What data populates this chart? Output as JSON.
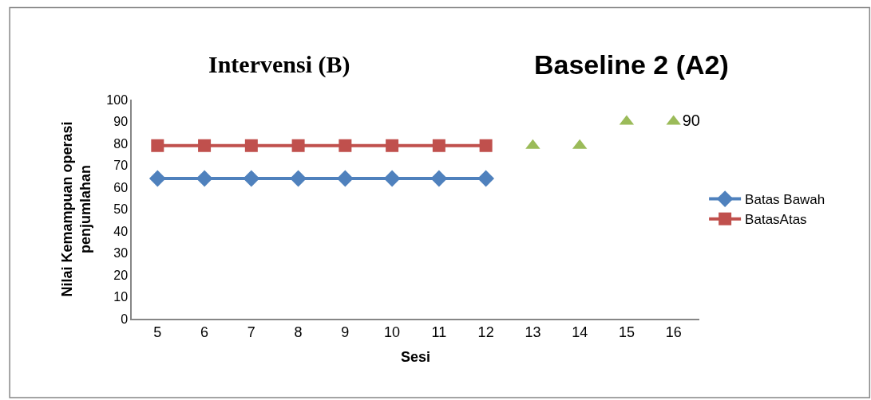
{
  "chart_data": {
    "type": "line",
    "categories": [
      "5",
      "6",
      "7",
      "8",
      "9",
      "10",
      "11",
      "12",
      "13",
      "14",
      "15",
      "16"
    ],
    "xlabel": "Sesi",
    "ylabel": "Nilai Kemampuan operasi\npenjumlahan",
    "ylim": [
      0,
      100
    ],
    "yticks": [
      0,
      10,
      20,
      30,
      40,
      50,
      60,
      70,
      80,
      90,
      100
    ],
    "legend": "right",
    "series": [
      {
        "name": "Batas Bawah",
        "color": "#4f81bd",
        "marker": "diamond",
        "values": [
          64,
          64,
          64,
          64,
          64,
          64,
          64,
          64,
          null,
          null,
          null,
          null
        ]
      },
      {
        "name": "BatasAtas",
        "color": "#c0504d",
        "marker": "square",
        "values": [
          79,
          79,
          79,
          79,
          79,
          79,
          79,
          79,
          null,
          null,
          null,
          null
        ]
      },
      {
        "type": "scatter",
        "color": "#9bbb59",
        "marker": "triangle",
        "values": [
          null,
          null,
          null,
          null,
          null,
          null,
          null,
          null,
          79,
          79,
          90,
          90
        ],
        "value_labels": [
          null,
          null,
          null,
          null,
          null,
          null,
          null,
          null,
          null,
          null,
          null,
          "90"
        ]
      }
    ],
    "annotations": [
      "Intervensi (B)",
      "Baseline 2 (A2)"
    ]
  }
}
